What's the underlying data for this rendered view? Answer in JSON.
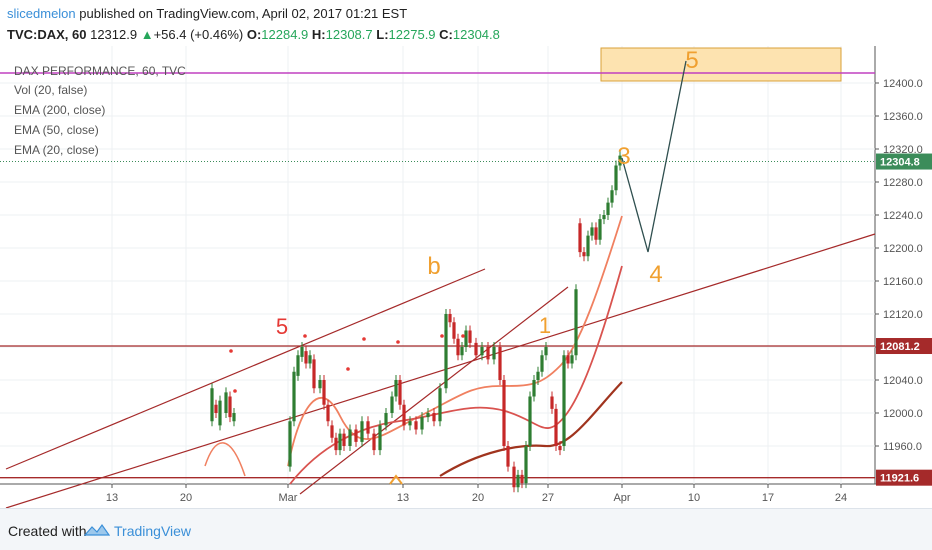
{
  "header": {
    "user": "slicedmelon",
    "published_text": "published on TradingView.com, April 02, 2017 01:21 EST",
    "symbol": "TVC:DAX, 60",
    "last": "12312.9",
    "change_arrow": "▲",
    "change": "+56.4 (+0.46%)",
    "open_label": "O:",
    "open": "12284.9",
    "high_label": "H:",
    "high": "12308.7",
    "low_label": "L:",
    "low": "12275.9",
    "close_label": "C:",
    "close": "12304.8"
  },
  "legend": [
    "DAX PERFORMANCE, 60, TVC",
    "Vol (20, false)",
    "EMA (200, close)",
    "EMA (50, close)",
    "EMA (20, close)"
  ],
  "footer": {
    "created_with": "Created with",
    "brand": "TradingView"
  },
  "colors": {
    "candle_up": "#2e7d32",
    "candle_down": "#c62828",
    "ema20": "#f08060",
    "ema50": "#d9534f",
    "ema200": "#a0341e",
    "trendline": "#a52a2a",
    "wave_orange": "#f0a030",
    "wave_red": "#e53935",
    "target_fill": "#fde3b0",
    "magenta_line": "#c040c0",
    "price_tag_dark": "#a52a2a",
    "price_tag_green": "#3c8c5a"
  },
  "chart_data": {
    "type": "candlestick",
    "title": "DAX PERFORMANCE, 60, TVC",
    "y_axis": {
      "min": 11900,
      "max": 12440,
      "ticks": [
        12400.0,
        12360.0,
        12320.0,
        12280.0,
        12240.0,
        12200.0,
        12160.0,
        12120.0,
        12080.0,
        12040.0,
        12000.0,
        11960.0
      ]
    },
    "x_axis": {
      "ticks": [
        "13",
        "20",
        "Mar",
        "13",
        "20",
        "27",
        "Apr",
        "10",
        "17",
        "24"
      ]
    },
    "price_tags": [
      {
        "label": "12304.8",
        "value": 12304.8,
        "style": "green"
      },
      {
        "label": "12081.2",
        "value": 12081.2,
        "style": "dark"
      },
      {
        "label": "11921.6",
        "value": 11921.6,
        "style": "dark"
      }
    ],
    "horizontal_levels": [
      12081.2,
      11921.6,
      12304.8
    ],
    "wave_labels": [
      {
        "text": "5",
        "color": "red"
      },
      {
        "text": "b",
        "color": "orange"
      },
      {
        "text": "1",
        "color": "orange"
      },
      {
        "text": "3",
        "color": "orange"
      },
      {
        "text": "4",
        "color": "orange"
      },
      {
        "text": "5",
        "color": "orange"
      }
    ],
    "series": [
      {
        "name": "EMA (20, close)",
        "role": "ema20"
      },
      {
        "name": "EMA (50, close)",
        "role": "ema50"
      },
      {
        "name": "EMA (200, close)",
        "role": "ema200"
      }
    ]
  }
}
